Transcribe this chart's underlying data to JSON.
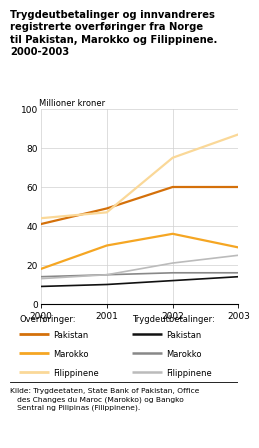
{
  "title_line1": "Trygdeutbetalinger og innvandreres",
  "title_line2": "registrerte overføringer fra Norge",
  "title_line3": "til Pakistan, Marokko og Filippinene.",
  "title_line4": "2000-2003",
  "ylabel": "Millioner kroner",
  "years": [
    2000,
    2001,
    2002,
    2003
  ],
  "overforinger": {
    "Pakistan": [
      41,
      49,
      60,
      60
    ],
    "Marokko": [
      18,
      30,
      36,
      29
    ],
    "Filippinene": [
      44,
      47,
      75,
      87
    ]
  },
  "trygdeutbetalinger": {
    "Pakistan": [
      9,
      10,
      12,
      14
    ],
    "Marokko": [
      14,
      15,
      16,
      16
    ],
    "Filippinene": [
      13,
      15,
      21,
      25
    ]
  },
  "colors_overf": {
    "Pakistan": "#D4700A",
    "Marokko": "#F5A623",
    "Filippinene": "#FAD898"
  },
  "colors_trygd": {
    "Pakistan": "#111111",
    "Marokko": "#888888",
    "Filippinene": "#BBBBBB"
  },
  "ylim": [
    0,
    100
  ],
  "yticks": [
    0,
    20,
    40,
    60,
    80,
    100
  ],
  "source_text": "Kilde: Trygdeetaten, State Bank of Pakistan, Office\n   des Changes du Maroc (Marokko) og Bangko\n   Sentral ng Pilipinas (Filippinene).",
  "legend_overf_label": "Overføringer:",
  "legend_trygd_label": "Trygdeutbetalinger:",
  "legend_items": [
    "Pakistan",
    "Marokko",
    "Filippinene"
  ],
  "lw_overf": 1.6,
  "lw_trygd": 1.2
}
